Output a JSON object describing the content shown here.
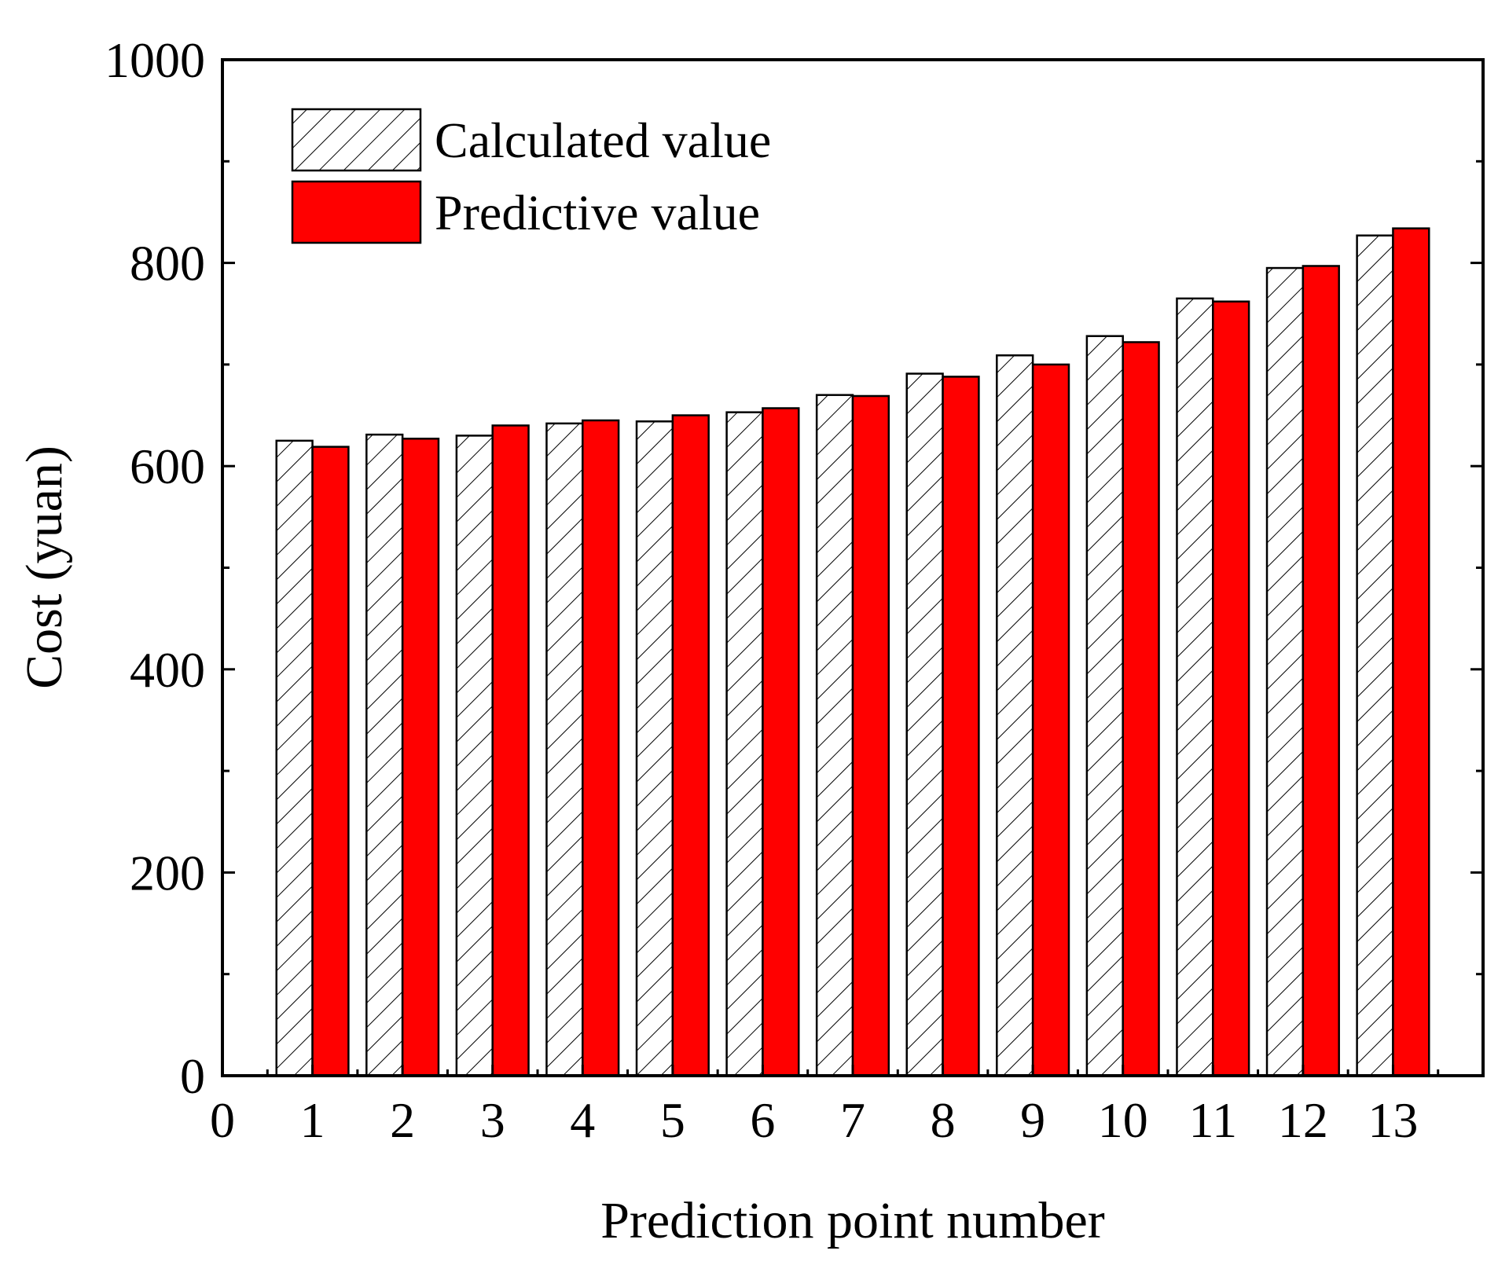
{
  "chart_data": {
    "type": "bar",
    "title": "",
    "xlabel": "Prediction point number",
    "ylabel": "Cost (yuan)",
    "x_tick_labels": [
      "0",
      "1",
      "2",
      "3",
      "4",
      "5",
      "6",
      "7",
      "8",
      "9",
      "10",
      "11",
      "12",
      "13"
    ],
    "categories": [
      "1",
      "2",
      "3",
      "4",
      "5",
      "6",
      "7",
      "8",
      "9",
      "10",
      "11",
      "12",
      "13"
    ],
    "y_ticks": [
      0,
      200,
      400,
      600,
      800,
      1000
    ],
    "ylim": [
      0,
      1000
    ],
    "xlim": [
      0,
      14
    ],
    "legend_position": "top-left",
    "series": [
      {
        "name": "Calculated value",
        "style": "hatched",
        "color": "#ffffff",
        "values": [
          625,
          631,
          630,
          642,
          644,
          653,
          670,
          691,
          709,
          728,
          765,
          795,
          827
        ]
      },
      {
        "name": "Predictive value",
        "style": "solid",
        "color": "#ff0000",
        "values": [
          619,
          627,
          640,
          645,
          650,
          657,
          669,
          688,
          700,
          722,
          762,
          797,
          834
        ]
      }
    ]
  }
}
